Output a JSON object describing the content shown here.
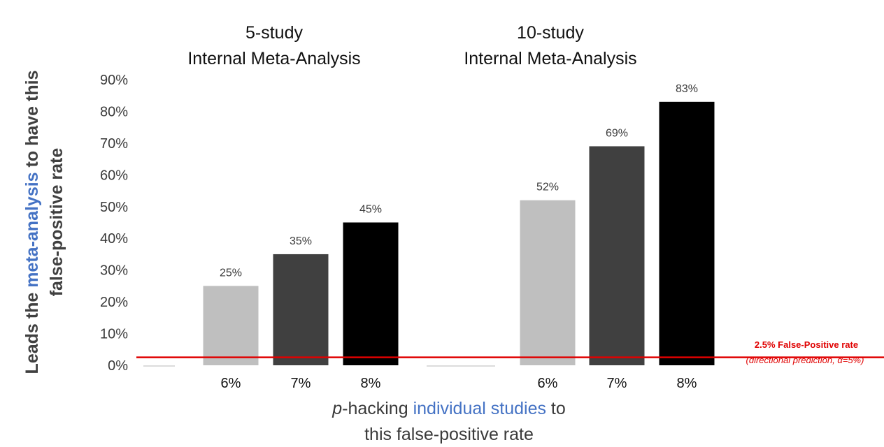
{
  "chart_data": {
    "type": "bar",
    "groups": [
      {
        "title_line1": "5-study",
        "title_line2": "Internal Meta-Analysis",
        "categories": [
          "6%",
          "7%",
          "8%"
        ],
        "values": [
          25,
          35,
          45
        ],
        "labels": [
          "25%",
          "35%",
          "45%"
        ]
      },
      {
        "title_line1": "10-study",
        "title_line2": "Internal Meta-Analysis",
        "categories": [
          "6%",
          "7%",
          "8%"
        ],
        "values": [
          52,
          69,
          83
        ],
        "labels": [
          "52%",
          "69%",
          "83%"
        ]
      }
    ],
    "bar_colors": [
      "#bfbfbf",
      "#404040",
      "#000000"
    ],
    "ylim": [
      0,
      90
    ],
    "yticks": [
      "0%",
      "10%",
      "20%",
      "30%",
      "40%",
      "50%",
      "60%",
      "70%",
      "80%",
      "90%"
    ],
    "ylabel": {
      "line1_pre": "Leads the ",
      "line1_highlight": "meta-analysis",
      "line1_post": " to have this",
      "line2": "false-positive rate"
    },
    "xlabel": {
      "line1_italic": "p",
      "line1_pre": "-hacking ",
      "line1_highlight": "individual studies",
      "line1_post": " to",
      "line2": "this false-positive rate"
    },
    "reference_line": {
      "value": 2.5,
      "color": "#e00000",
      "label": "2.5% False-Positive rate",
      "sublabel": "(directional prediction, α=5%)"
    },
    "highlight_color": "#4472c4",
    "grid": false
  }
}
